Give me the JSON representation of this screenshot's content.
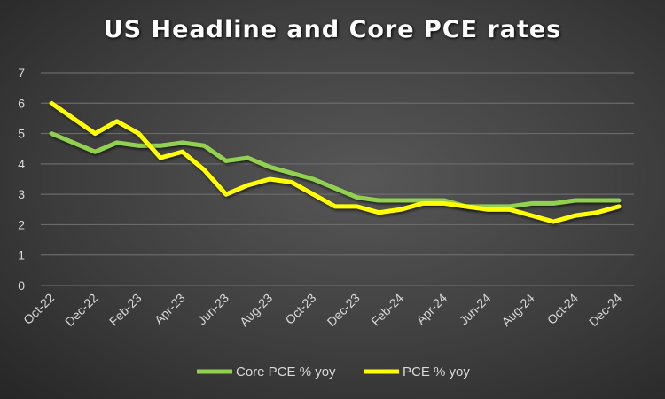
{
  "chart_data": {
    "type": "line",
    "title": "US Headline and Core PCE rates",
    "xlabel": "",
    "ylabel": "",
    "ylim": [
      0,
      7
    ],
    "yticks": [
      0,
      1,
      2,
      3,
      4,
      5,
      6,
      7
    ],
    "grid": true,
    "legend": "bottom",
    "x": [
      "Oct-22",
      "Nov-22",
      "Dec-22",
      "Jan-23",
      "Feb-23",
      "Mar-23",
      "Apr-23",
      "May-23",
      "Jun-23",
      "Jul-23",
      "Aug-23",
      "Sep-23",
      "Oct-23",
      "Nov-23",
      "Dec-23",
      "Jan-24",
      "Feb-24",
      "Mar-24",
      "Apr-24",
      "May-24",
      "Jun-24",
      "Jul-24",
      "Aug-24",
      "Sep-24",
      "Oct-24",
      "Nov-24",
      "Dec-24"
    ],
    "xtick_labels": [
      "Oct-22",
      "Dec-22",
      "Feb-23",
      "Apr-23",
      "Jun-23",
      "Aug-23",
      "Oct-23",
      "Dec-23",
      "Feb-24",
      "Apr-24",
      "Jun-24",
      "Aug-24",
      "Oct-24",
      "Dec-24"
    ],
    "series": [
      {
        "name": "Core PCE % yoy",
        "color": "#92d050",
        "values": [
          5.0,
          4.7,
          4.4,
          4.7,
          4.6,
          4.6,
          4.7,
          4.6,
          4.1,
          4.2,
          3.9,
          3.7,
          3.5,
          3.2,
          2.9,
          2.8,
          2.8,
          2.8,
          2.8,
          2.6,
          2.6,
          2.6,
          2.7,
          2.7,
          2.8,
          2.8,
          2.8
        ]
      },
      {
        "name": "PCE % yoy",
        "color": "#ffff00",
        "values": [
          6.0,
          5.5,
          5.0,
          5.4,
          5.0,
          4.2,
          4.4,
          3.8,
          3.0,
          3.3,
          3.5,
          3.4,
          3.0,
          2.6,
          2.6,
          2.4,
          2.5,
          2.7,
          2.7,
          2.6,
          2.5,
          2.5,
          2.3,
          2.1,
          2.3,
          2.4,
          2.6
        ]
      }
    ]
  }
}
